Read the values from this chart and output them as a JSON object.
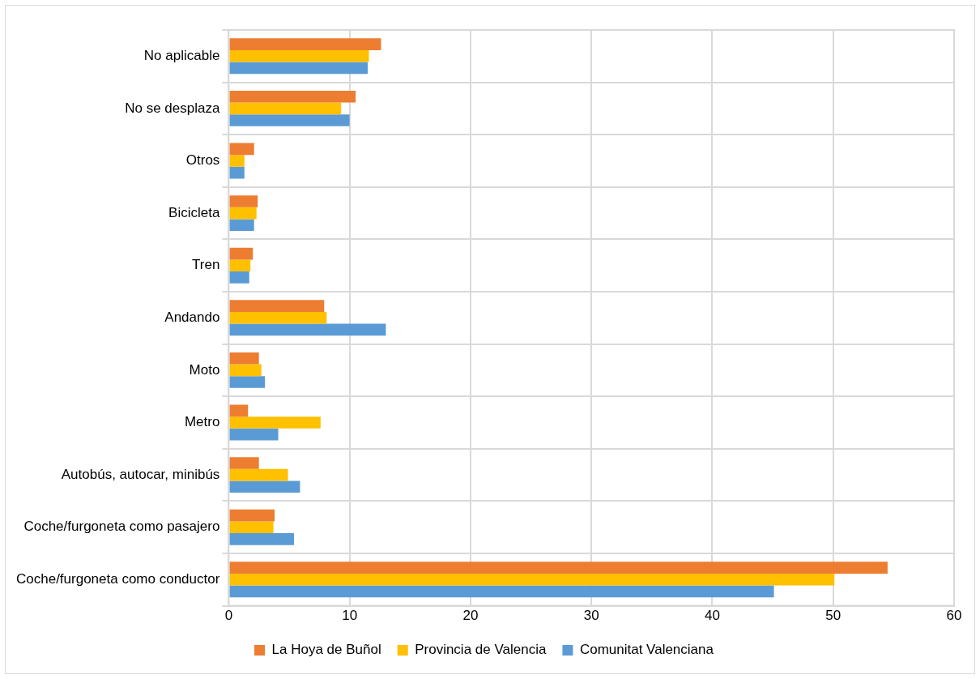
{
  "chart_data": {
    "type": "bar",
    "orientation": "horizontal",
    "categories": [
      "No aplicable",
      "No se desplaza",
      "Otros",
      "Bicicleta",
      "Tren",
      "Andando",
      "Moto",
      "Metro",
      "Autobús, autocar, minibús",
      "Coche/furgoneta como pasajero",
      "Coche/furgoneta como conductor"
    ],
    "series": [
      {
        "name": "La Hoya de Buñol",
        "color": "#ed7d31",
        "values": [
          12.6,
          10.5,
          2.1,
          2.4,
          2.0,
          7.9,
          2.5,
          1.6,
          2.5,
          3.8,
          54.5
        ]
      },
      {
        "name": "Provincia de Valencia",
        "color": "#ffc000",
        "values": [
          11.6,
          9.3,
          1.3,
          2.3,
          1.8,
          8.1,
          2.7,
          7.6,
          4.9,
          3.7,
          50.1
        ]
      },
      {
        "name": "Comunitat Valenciana",
        "color": "#5b9bd5",
        "values": [
          11.5,
          10.0,
          1.3,
          2.1,
          1.7,
          13.0,
          3.0,
          4.1,
          5.9,
          5.4,
          45.1
        ]
      }
    ],
    "xlim": [
      0,
      60
    ],
    "xticks": [
      0,
      10,
      20,
      30,
      40,
      50,
      60
    ],
    "grid": true,
    "legend": "bottom"
  }
}
